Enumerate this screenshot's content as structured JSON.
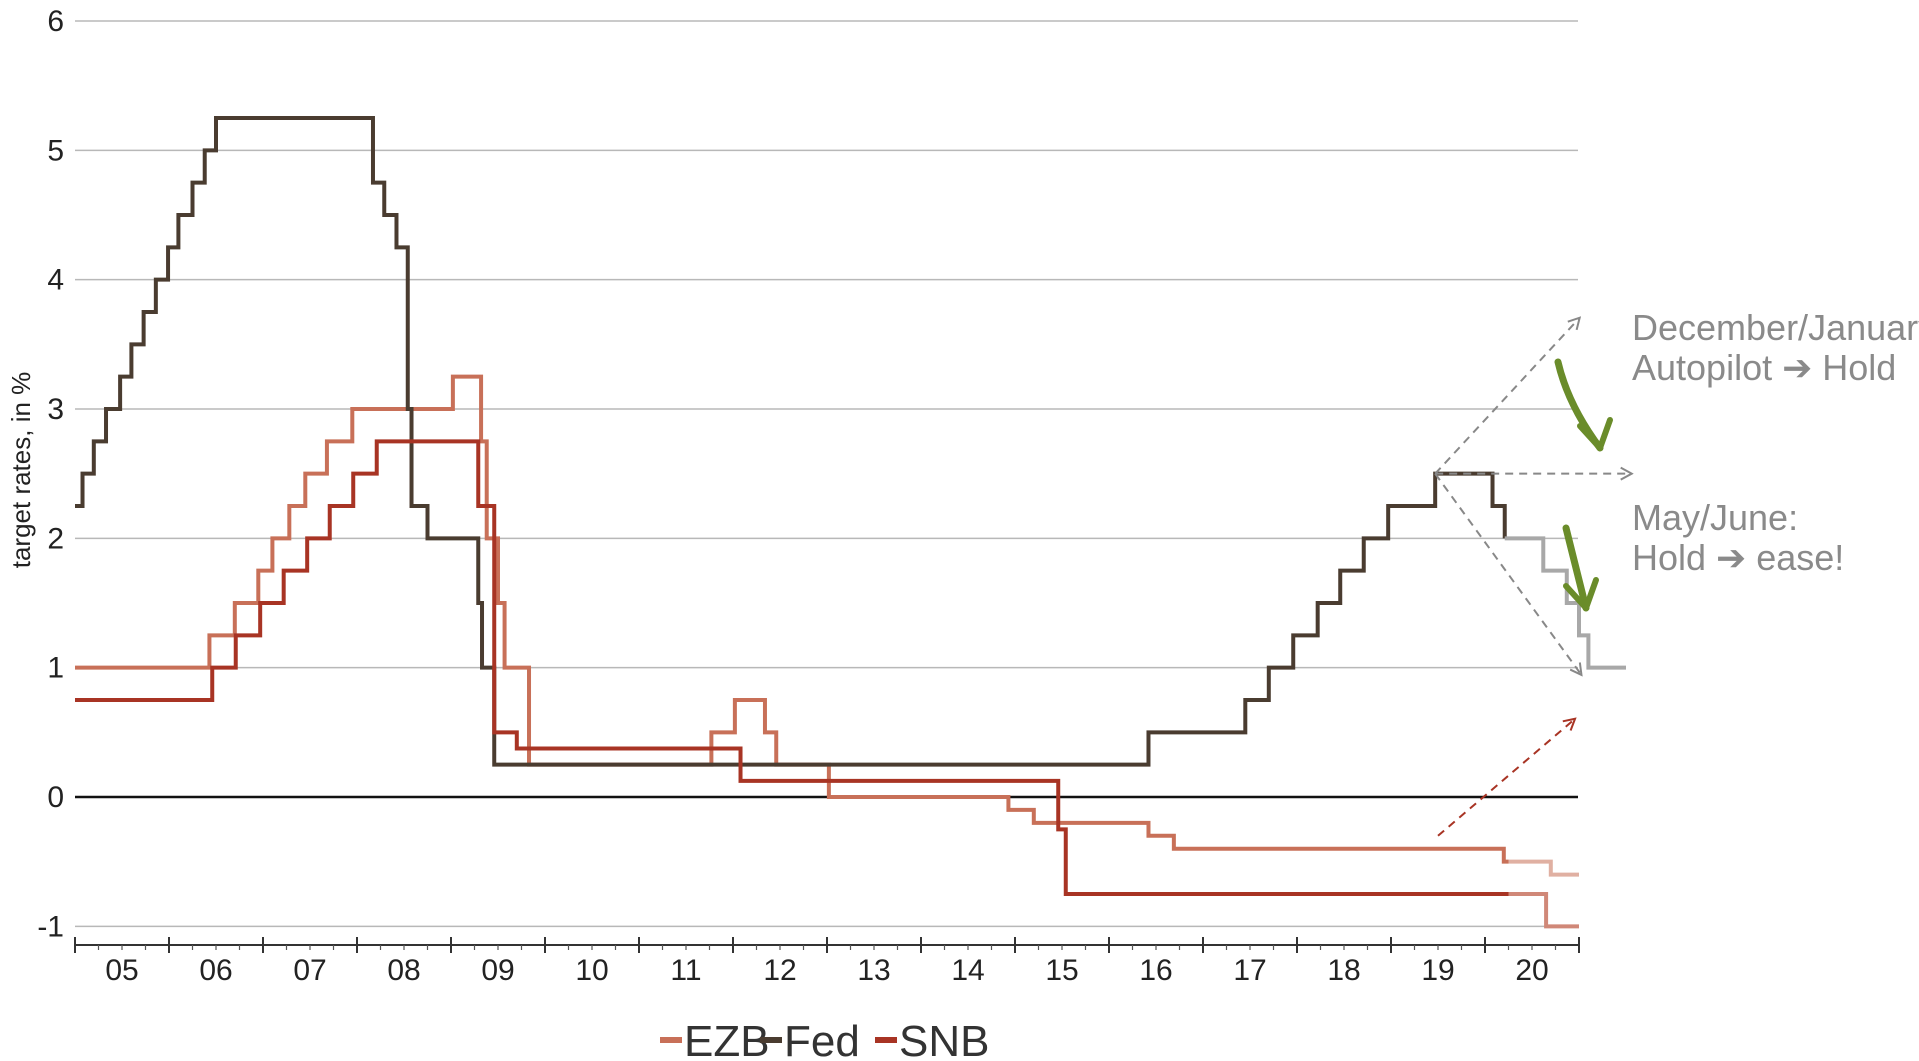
{
  "chart_data": {
    "type": "line",
    "title": "",
    "xlabel": "",
    "ylabel": "target rates, in %",
    "ylim": [
      -1.2,
      6
    ],
    "yticks": [
      -1,
      0,
      1,
      2,
      3,
      4,
      5,
      6
    ],
    "ytick_labels": [
      "-1",
      "0",
      "1",
      "2",
      "3",
      "4",
      "5",
      "6"
    ],
    "xlim": [
      2004.5,
      2020.5
    ],
    "xtick_labels": [
      "05",
      "06",
      "07",
      "08",
      "09",
      "10",
      "11",
      "12",
      "13",
      "14",
      "15",
      "16",
      "17",
      "18",
      "19",
      "20"
    ],
    "grid": true,
    "legend_position": "bottom-center",
    "colors": {
      "EZB": "#c87058",
      "Fed": "#4a3c30",
      "SNB": "#a83424",
      "EZB_projection": "#e0b0a2",
      "Fed_projection": "#a8a8a8",
      "SNB_projection": "#d08878",
      "annotation_arrow": "#6a8c2a",
      "annotation_text": "#8a8a8a",
      "scenario_arrow_grey": "#888888",
      "scenario_arrow_red": "#a83424"
    },
    "series": [
      {
        "name": "EZB",
        "step": true,
        "points": [
          [
            2004.5,
            1.0
          ],
          [
            2005.93,
            1.25
          ],
          [
            2006.2,
            1.5
          ],
          [
            2006.45,
            1.75
          ],
          [
            2006.6,
            2.0
          ],
          [
            2006.78,
            2.25
          ],
          [
            2006.95,
            2.5
          ],
          [
            2007.18,
            2.75
          ],
          [
            2007.45,
            3.0
          ],
          [
            2008.52,
            3.25
          ],
          [
            2008.82,
            2.75
          ],
          [
            2008.88,
            2.0
          ],
          [
            2009.0,
            1.5
          ],
          [
            2009.07,
            1.0
          ],
          [
            2009.33,
            0.25
          ],
          [
            2011.27,
            0.5
          ],
          [
            2011.52,
            0.75
          ],
          [
            2011.84,
            0.5
          ],
          [
            2011.96,
            0.25
          ],
          [
            2012.52,
            0.0
          ],
          [
            2014.43,
            -0.1
          ],
          [
            2014.7,
            -0.2
          ],
          [
            2015.92,
            -0.3
          ],
          [
            2016.19,
            -0.4
          ],
          [
            2019.7,
            -0.5
          ]
        ]
      },
      {
        "name": "Fed",
        "step": true,
        "points": [
          [
            2004.5,
            2.25
          ],
          [
            2004.58,
            2.5
          ],
          [
            2004.7,
            2.75
          ],
          [
            2004.83,
            3.0
          ],
          [
            2004.98,
            3.25
          ],
          [
            2005.1,
            3.5
          ],
          [
            2005.23,
            3.75
          ],
          [
            2005.36,
            4.0
          ],
          [
            2005.49,
            4.25
          ],
          [
            2005.6,
            4.5
          ],
          [
            2005.75,
            4.75
          ],
          [
            2005.88,
            5.0
          ],
          [
            2006.0,
            5.25
          ],
          [
            2007.67,
            4.75
          ],
          [
            2007.79,
            4.5
          ],
          [
            2007.92,
            4.25
          ],
          [
            2008.04,
            3.0
          ],
          [
            2008.08,
            2.25
          ],
          [
            2008.25,
            2.0
          ],
          [
            2008.79,
            1.5
          ],
          [
            2008.83,
            1.0
          ],
          [
            2008.96,
            0.25
          ],
          [
            2015.92,
            0.5
          ],
          [
            2016.95,
            0.75
          ],
          [
            2017.2,
            1.0
          ],
          [
            2017.46,
            1.25
          ],
          [
            2017.72,
            1.5
          ],
          [
            2017.96,
            1.75
          ],
          [
            2018.21,
            2.0
          ],
          [
            2018.47,
            2.25
          ],
          [
            2018.97,
            2.5
          ],
          [
            2019.58,
            2.25
          ],
          [
            2019.71,
            2.0
          ]
        ]
      },
      {
        "name": "SNB",
        "step": true,
        "points": [
          [
            2004.5,
            0.75
          ],
          [
            2005.96,
            1.0
          ],
          [
            2006.21,
            1.25
          ],
          [
            2006.47,
            1.5
          ],
          [
            2006.72,
            1.75
          ],
          [
            2006.97,
            2.0
          ],
          [
            2007.21,
            2.25
          ],
          [
            2007.46,
            2.5
          ],
          [
            2007.71,
            2.75
          ],
          [
            2008.79,
            2.25
          ],
          [
            2008.96,
            0.5
          ],
          [
            2009.2,
            0.375
          ],
          [
            2011.58,
            0.125
          ],
          [
            2014.96,
            -0.25
          ],
          [
            2015.04,
            -0.75
          ]
        ]
      },
      {
        "name": "EZB projection",
        "step": true,
        "points": [
          [
            2019.75,
            -0.5
          ],
          [
            2020.2,
            -0.6
          ],
          [
            2020.5,
            -0.6
          ]
        ]
      },
      {
        "name": "Fed projection",
        "step": true,
        "points": [
          [
            2019.71,
            2.0
          ],
          [
            2020.12,
            1.75
          ],
          [
            2020.37,
            1.5
          ],
          [
            2020.5,
            1.25
          ],
          [
            2020.6,
            1.0
          ],
          [
            2021.0,
            1.0
          ]
        ]
      },
      {
        "name": "SNB projection",
        "step": true,
        "points": [
          [
            2019.75,
            -0.75
          ],
          [
            2020.15,
            -1.0
          ],
          [
            2020.5,
            -1.0
          ]
        ]
      }
    ],
    "scenario_arrows": [
      {
        "from": [
          2018.97,
          2.5
        ],
        "to": [
          2020.5,
          3.7
        ],
        "color": "grey"
      },
      {
        "from": [
          2018.97,
          2.5
        ],
        "to": [
          2021.05,
          2.5
        ],
        "color": "grey"
      },
      {
        "from": [
          2018.97,
          2.5
        ],
        "to": [
          2020.52,
          0.95
        ],
        "color": "grey"
      },
      {
        "from": [
          2019.0,
          -0.3
        ],
        "to": [
          2020.45,
          0.6
        ],
        "color": "red"
      }
    ],
    "annotations": [
      {
        "lines": [
          "December/January",
          "Autopilot ➔ Hold"
        ]
      },
      {
        "lines": [
          "May/June:",
          "Hold ➔ ease!"
        ]
      }
    ],
    "legend": [
      "EZB",
      "Fed",
      "SNB"
    ]
  }
}
